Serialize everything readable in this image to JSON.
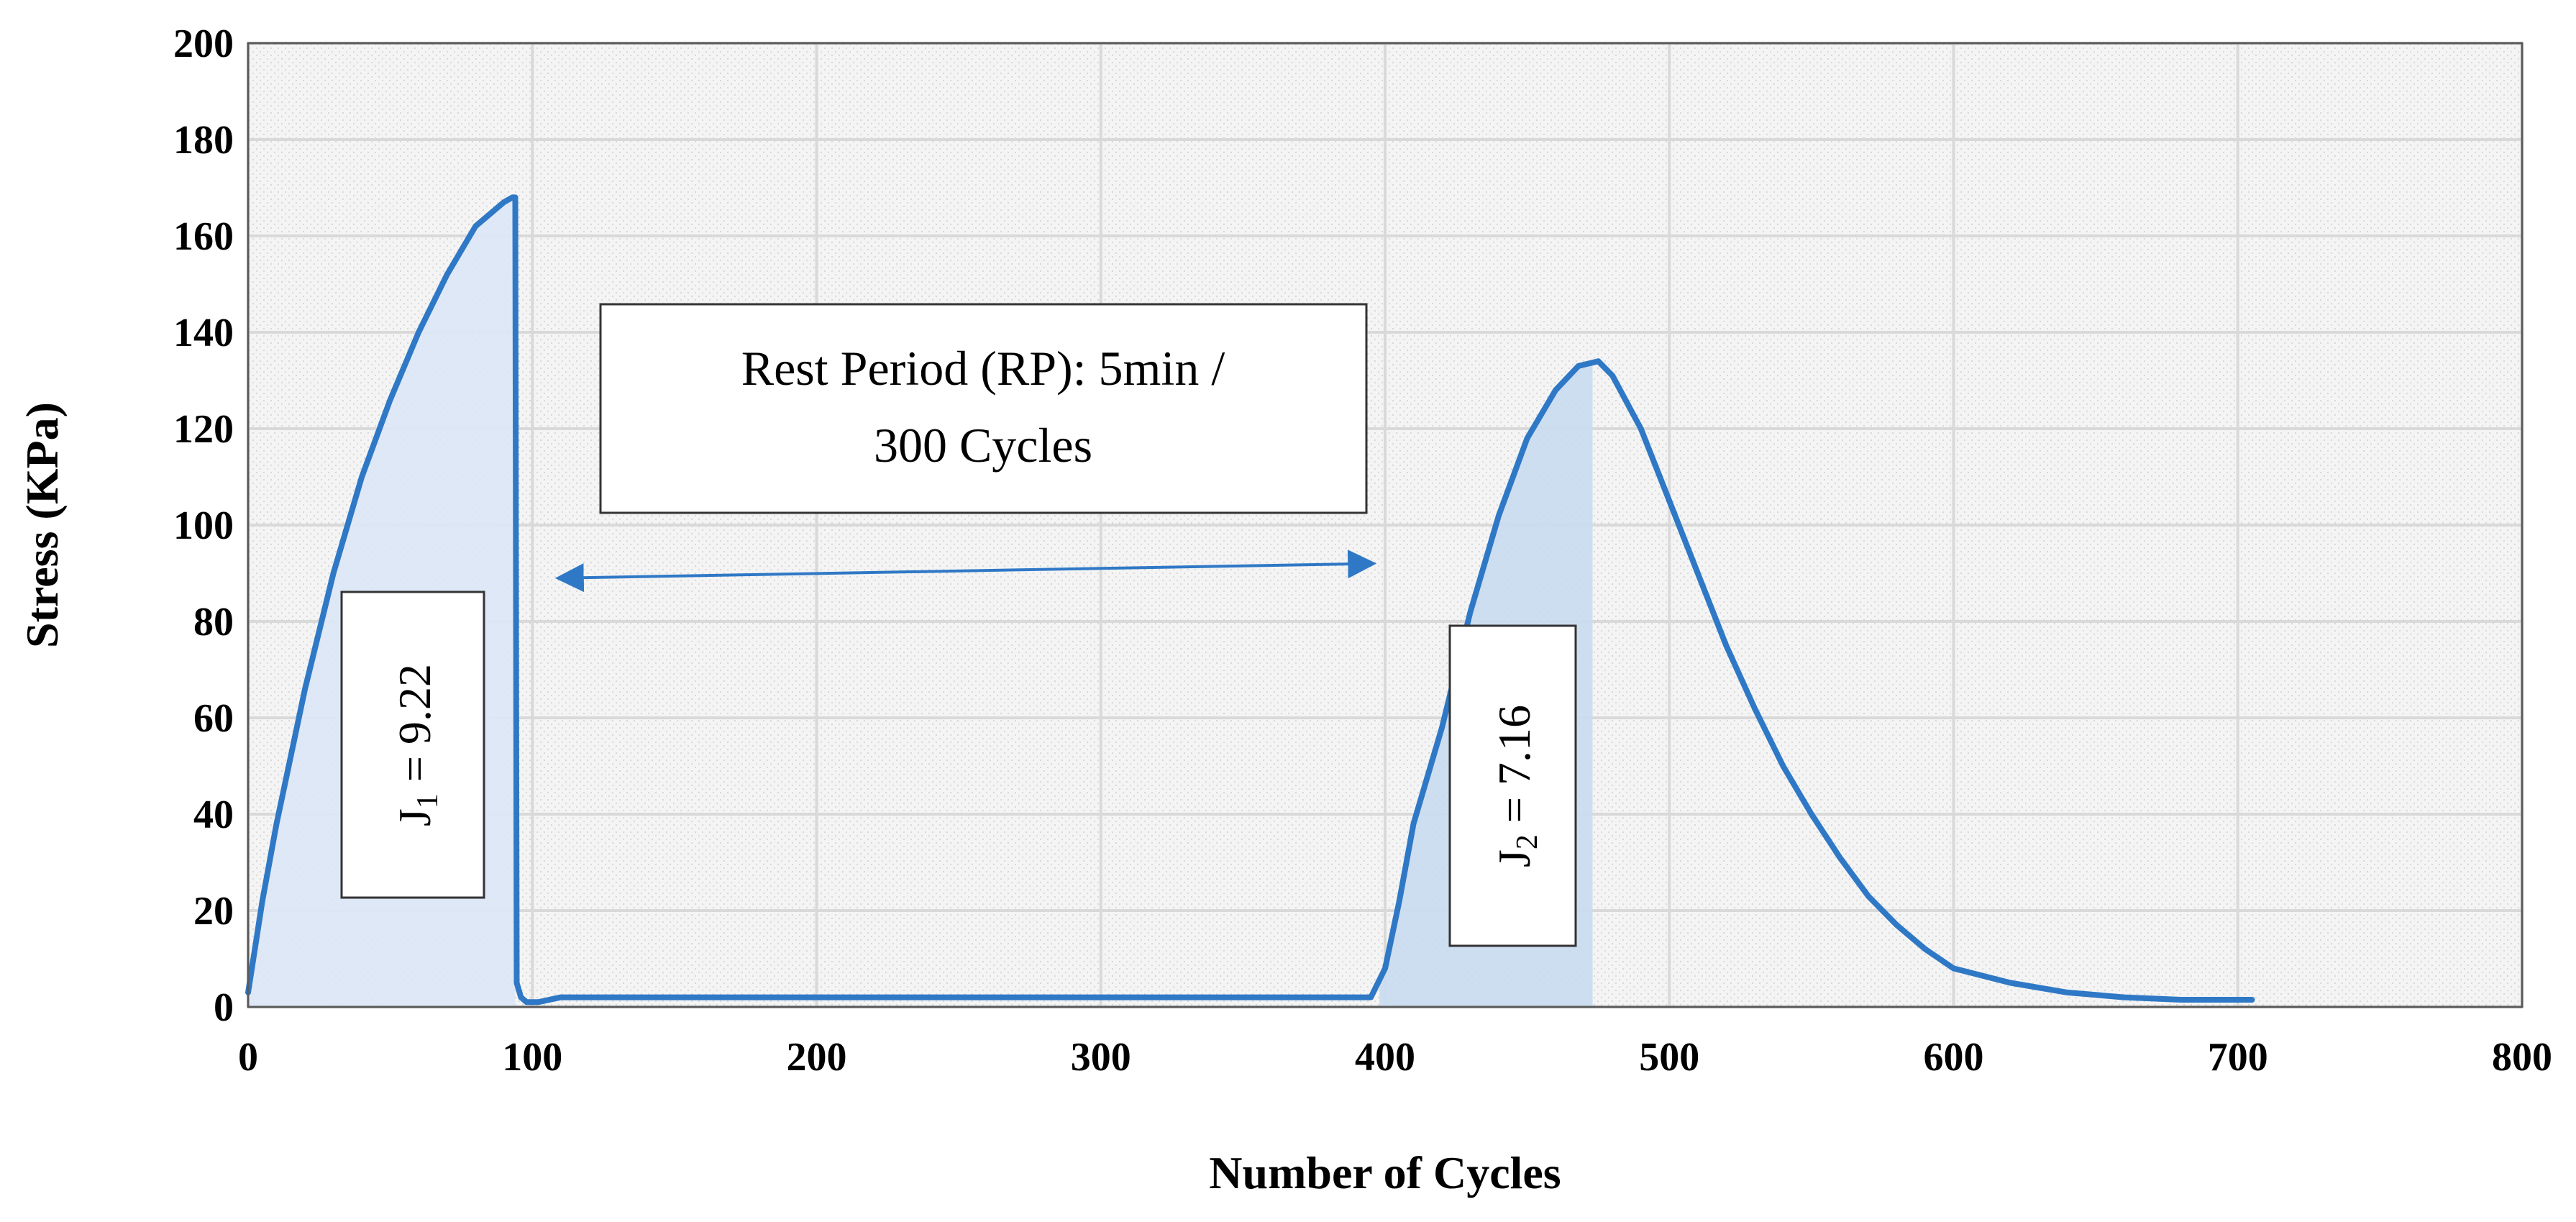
{
  "chart_data": {
    "type": "line",
    "title": "",
    "xlabel": "Number of Cycles",
    "ylabel": "Stress (KPa)",
    "xlim": [
      0,
      800
    ],
    "ylim": [
      0,
      200
    ],
    "x_ticks": [
      "0",
      "100",
      "200",
      "300",
      "400",
      "500",
      "600",
      "700",
      "800"
    ],
    "y_ticks": [
      "0",
      "20",
      "40",
      "60",
      "80",
      "100",
      "120",
      "140",
      "160",
      "180",
      "200"
    ],
    "grid": true,
    "series": [
      {
        "name": "Stress",
        "color": "#2f78c6",
        "points": [
          [
            0,
            3
          ],
          [
            5,
            22
          ],
          [
            10,
            38
          ],
          [
            20,
            66
          ],
          [
            30,
            90
          ],
          [
            40,
            110
          ],
          [
            50,
            126
          ],
          [
            60,
            140
          ],
          [
            70,
            152
          ],
          [
            80,
            162
          ],
          [
            90,
            167
          ],
          [
            93,
            168
          ],
          [
            94,
            168
          ],
          [
            94.5,
            5
          ],
          [
            96,
            2
          ],
          [
            98,
            1
          ],
          [
            102,
            1
          ],
          [
            110,
            2
          ],
          [
            150,
            2
          ],
          [
            200,
            2
          ],
          [
            300,
            2
          ],
          [
            395,
            2
          ],
          [
            400,
            8
          ],
          [
            405,
            22
          ],
          [
            410,
            38
          ],
          [
            420,
            58
          ],
          [
            430,
            82
          ],
          [
            440,
            102
          ],
          [
            450,
            118
          ],
          [
            460,
            128
          ],
          [
            468,
            133
          ],
          [
            475,
            134
          ],
          [
            480,
            131
          ],
          [
            490,
            120
          ],
          [
            500,
            105
          ],
          [
            510,
            90
          ],
          [
            520,
            75
          ],
          [
            530,
            62
          ],
          [
            540,
            50
          ],
          [
            550,
            40
          ],
          [
            560,
            31
          ],
          [
            570,
            23
          ],
          [
            580,
            17
          ],
          [
            590,
            12
          ],
          [
            600,
            8
          ],
          [
            620,
            5
          ],
          [
            640,
            3
          ],
          [
            660,
            2
          ],
          [
            680,
            1.5
          ],
          [
            705,
            1.5
          ]
        ]
      }
    ],
    "shaded_regions": [
      {
        "name": "J1 area",
        "x_start": 0,
        "x_end": 94,
        "color": "#dbe7f6"
      },
      {
        "name": "J2 area",
        "x_start": 398,
        "x_end": 473,
        "color": "#c9dbf1"
      }
    ],
    "annotations": [
      {
        "id": "rest_period",
        "line1": "Rest Period (RP): 5min /",
        "line2": "300 Cycles"
      },
      {
        "id": "arrow",
        "text": "",
        "x_from": 110,
        "x_to": 395,
        "y_from": 89,
        "y_to": 92
      },
      {
        "id": "j1",
        "symbol": "J",
        "subscript": "1",
        "value_text": " = 9.22"
      },
      {
        "id": "j2",
        "symbol": "J",
        "subscript": "2",
        "value_text": " = 7.16"
      }
    ]
  }
}
